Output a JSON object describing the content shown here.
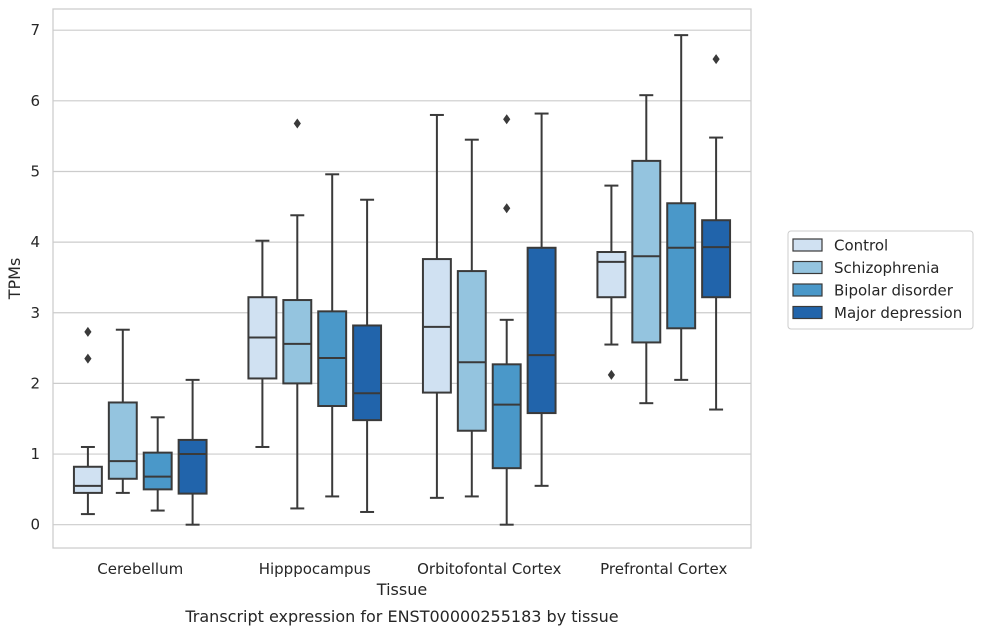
{
  "caption": "Transcript expression for ENST00000255183 by tissue",
  "chart_data": {
    "type": "boxplot",
    "xlabel": "Tissue",
    "ylabel": "TPMs",
    "ylim": [
      -0.33,
      7.3
    ],
    "yticks": [
      0,
      1,
      2,
      3,
      4,
      5,
      6,
      7
    ],
    "grid": "horizontal",
    "legend_position": "right",
    "categories": [
      "Cerebellum",
      "Hipppocampus",
      "Orbitofontal Cortex",
      "Prefrontal Cortex"
    ],
    "series": [
      {
        "name": "Control",
        "color": "#d0e1f2",
        "boxes": [
          {
            "whislo": 0.15,
            "q1": 0.45,
            "med": 0.55,
            "q3": 0.82,
            "whishi": 1.1,
            "fliers": [
              2.35,
              2.73
            ]
          },
          {
            "whislo": 1.1,
            "q1": 2.07,
            "med": 2.65,
            "q3": 3.22,
            "whishi": 4.02,
            "fliers": []
          },
          {
            "whislo": 0.38,
            "q1": 1.87,
            "med": 2.8,
            "q3": 3.76,
            "whishi": 5.8,
            "fliers": []
          },
          {
            "whislo": 2.55,
            "q1": 3.22,
            "med": 3.72,
            "q3": 3.86,
            "whishi": 4.8,
            "fliers": [
              2.12
            ]
          }
        ]
      },
      {
        "name": "Schizophrenia",
        "color": "#94c4df",
        "boxes": [
          {
            "whislo": 0.45,
            "q1": 0.65,
            "med": 0.9,
            "q3": 1.73,
            "whishi": 2.76,
            "fliers": []
          },
          {
            "whislo": 0.23,
            "q1": 2.0,
            "med": 2.56,
            "q3": 3.18,
            "whishi": 4.38,
            "fliers": [
              5.68
            ]
          },
          {
            "whislo": 0.4,
            "q1": 1.33,
            "med": 2.3,
            "q3": 3.59,
            "whishi": 5.45,
            "fliers": []
          },
          {
            "whislo": 1.72,
            "q1": 2.58,
            "med": 3.8,
            "q3": 5.15,
            "whishi": 6.08,
            "fliers": []
          }
        ]
      },
      {
        "name": "Bipolar disorder",
        "color": "#4a98c9",
        "boxes": [
          {
            "whislo": 0.2,
            "q1": 0.5,
            "med": 0.68,
            "q3": 1.02,
            "whishi": 1.52,
            "fliers": []
          },
          {
            "whislo": 0.4,
            "q1": 1.68,
            "med": 2.36,
            "q3": 3.02,
            "whishi": 4.96,
            "fliers": []
          },
          {
            "whislo": 0.0,
            "q1": 0.8,
            "med": 1.7,
            "q3": 2.27,
            "whishi": 2.9,
            "fliers": [
              4.48,
              5.74
            ]
          },
          {
            "whislo": 2.05,
            "q1": 2.78,
            "med": 3.92,
            "q3": 4.55,
            "whishi": 6.93,
            "fliers": []
          }
        ]
      },
      {
        "name": "Major depression",
        "color": "#2164ab",
        "boxes": [
          {
            "whislo": 0.0,
            "q1": 0.44,
            "med": 1.0,
            "q3": 1.2,
            "whishi": 2.05,
            "fliers": []
          },
          {
            "whislo": 0.18,
            "q1": 1.48,
            "med": 1.86,
            "q3": 2.82,
            "whishi": 4.6,
            "fliers": []
          },
          {
            "whislo": 0.55,
            "q1": 1.58,
            "med": 2.4,
            "q3": 3.92,
            "whishi": 5.82,
            "fliers": []
          },
          {
            "whislo": 1.63,
            "q1": 3.22,
            "med": 3.93,
            "q3": 4.31,
            "whishi": 5.48,
            "fliers": [
              6.59
            ]
          }
        ]
      }
    ]
  }
}
